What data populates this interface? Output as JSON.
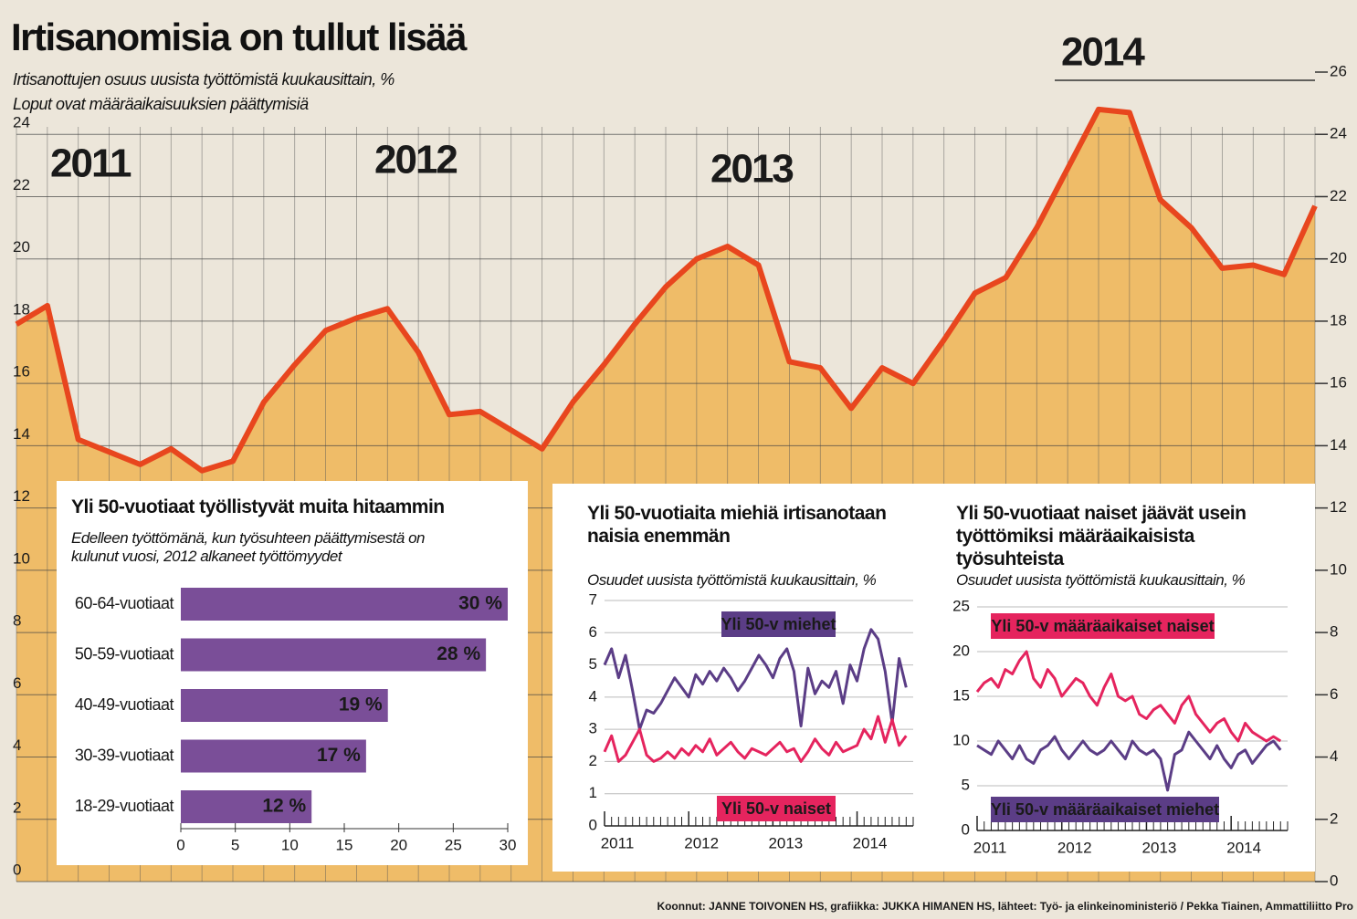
{
  "chart_data": [
    {
      "type": "area",
      "title": "Irtisanomisia on tullut lisää",
      "subtitle": [
        "Irtisanottujen osuus uusista työttömistä kuukausittain, %",
        "Loput ovat määräaikaisuuksien päättymisiä"
      ],
      "annotations": [
        "2011",
        "2012",
        "2013",
        "2014"
      ],
      "values": [
        17.9,
        18.5,
        14.2,
        13.8,
        13.4,
        13.9,
        13.2,
        13.5,
        15.4,
        16.6,
        17.7,
        18.1,
        18.4,
        17.0,
        15.0,
        15.1,
        14.5,
        13.9,
        15.4,
        16.6,
        17.9,
        19.1,
        20.0,
        20.4,
        19.8,
        16.7,
        16.5,
        15.2,
        16.5,
        16.0,
        17.4,
        18.9,
        19.4,
        21.0,
        22.9,
        24.8,
        24.7,
        21.9,
        21.0,
        19.7,
        19.8,
        19.5,
        21.7
      ],
      "color": "#e8461e",
      "fill": "#f0b453",
      "ylim": [
        0,
        26
      ],
      "yticks": [
        0,
        2,
        4,
        6,
        8,
        10,
        12,
        14,
        16,
        18,
        20,
        22,
        24
      ],
      "y2lim": [
        0,
        26
      ],
      "y2ticks": [
        0,
        2,
        4,
        6,
        8,
        10,
        12,
        14,
        16,
        18,
        20,
        22,
        24,
        26
      ],
      "grid": true
    },
    {
      "type": "barh",
      "title": "Yli 50-vuotiaat työllistyvät muita hitaammin",
      "subtitle": "Edelleen työttömänä, kun työsuhteen päättymisestä on kulunut vuosi, 2012 alkaneet työttömyydet",
      "categories": [
        "60-64-vuotiaat",
        "50-59-vuotiaat",
        "40-49-vuotiaat",
        "30-39-vuotiaat",
        "18-29-vuotiaat"
      ],
      "values": [
        30,
        28,
        19,
        17,
        12
      ],
      "value_labels": [
        "30 %",
        "28 %",
        "19 %",
        "17 %",
        "12 %"
      ],
      "color": "#7a4e98",
      "xlim": [
        0,
        30
      ],
      "xticks": [
        0,
        5,
        10,
        15,
        20,
        25,
        30
      ]
    },
    {
      "type": "line",
      "title": "Yli 50-vuotiaita miehiä irtisanotaan naisia enemmän",
      "subtitle": "Osuudet uusista työttömistä kuukausittain, %",
      "series": [
        {
          "name": "Yli 50-v miehet",
          "color": "#5b3d86",
          "values": [
            5.0,
            5.5,
            4.6,
            5.3,
            4.2,
            3.0,
            3.6,
            3.5,
            3.8,
            4.2,
            4.6,
            4.3,
            4.0,
            4.7,
            4.4,
            4.8,
            4.5,
            4.9,
            4.6,
            4.2,
            4.5,
            4.9,
            5.3,
            5.0,
            4.6,
            5.2,
            5.5,
            4.8,
            3.1,
            4.9,
            4.1,
            4.5,
            4.3,
            4.8,
            3.8,
            5.0,
            4.5,
            5.5,
            6.1,
            5.8,
            4.8,
            3.2,
            5.2,
            4.3
          ]
        },
        {
          "name": "Yli 50-v naiset",
          "color": "#e5245e",
          "values": [
            2.3,
            2.8,
            2.0,
            2.2,
            2.6,
            3.0,
            2.2,
            2.0,
            2.1,
            2.3,
            2.1,
            2.4,
            2.2,
            2.5,
            2.3,
            2.7,
            2.2,
            2.4,
            2.6,
            2.3,
            2.1,
            2.4,
            2.3,
            2.2,
            2.4,
            2.6,
            2.3,
            2.4,
            2.0,
            2.3,
            2.7,
            2.4,
            2.2,
            2.6,
            2.3,
            2.4,
            2.5,
            3.0,
            2.7,
            3.4,
            2.6,
            3.3,
            2.5,
            2.8
          ]
        }
      ],
      "xlim": [
        0,
        44
      ],
      "xticks": [
        {
          "value": 0,
          "label": "2011"
        },
        {
          "value": 12,
          "label": "2012"
        },
        {
          "value": 24,
          "label": "2013"
        },
        {
          "value": 36,
          "label": "2014"
        }
      ],
      "ylim": [
        0,
        7
      ],
      "yticks": [
        0,
        1,
        2,
        3,
        4,
        5,
        6,
        7
      ]
    },
    {
      "type": "line",
      "title": "Yli 50-vuotiaat naiset jäävät usein työttömiksi määräaikaisista työsuhteista",
      "subtitle": "Osuudet uusista työttömistä kuukausittain, %",
      "series": [
        {
          "name": "Yli 50-v määräaikaiset naiset",
          "color": "#e5245e",
          "values": [
            15.5,
            16.5,
            17,
            16,
            18,
            17.5,
            19,
            20,
            17,
            16,
            18,
            17,
            15,
            16,
            17,
            16.5,
            15,
            14,
            16,
            17.5,
            15,
            14.5,
            15,
            13,
            12.5,
            13.5,
            14,
            13,
            12,
            14,
            15,
            13,
            12,
            11,
            12,
            12.5,
            11,
            10,
            12,
            11,
            10.5,
            10,
            10.5,
            10
          ]
        },
        {
          "name": "Yli 50-v määräaikaiset miehet",
          "color": "#5b3d86",
          "values": [
            9.5,
            9,
            8.5,
            10,
            9,
            8,
            9.5,
            8,
            7.5,
            9,
            9.5,
            10.5,
            9,
            8,
            9,
            10,
            9,
            8.5,
            9,
            10,
            9,
            8,
            10,
            9,
            8.5,
            9,
            8,
            4.5,
            8.5,
            9,
            11,
            10,
            9,
            8,
            9.5,
            8,
            7,
            8.5,
            9,
            7.5,
            8.5,
            9.5,
            10,
            9
          ]
        }
      ],
      "xlim": [
        0,
        44
      ],
      "xticks": [
        {
          "value": 0,
          "label": "2011"
        },
        {
          "value": 12,
          "label": "2012"
        },
        {
          "value": 24,
          "label": "2013"
        },
        {
          "value": 36,
          "label": "2014"
        }
      ],
      "ylim": [
        0,
        25
      ],
      "yticks": [
        0,
        5,
        10,
        15,
        20,
        25
      ]
    }
  ],
  "source": "Koonnut: JANNE TOIVONEN HS, grafiikka: JUKKA HIMANEN HS, lähteet: Työ- ja elinkeinoministeriö / Pekka Tiainen, Ammattiliitto Pro"
}
